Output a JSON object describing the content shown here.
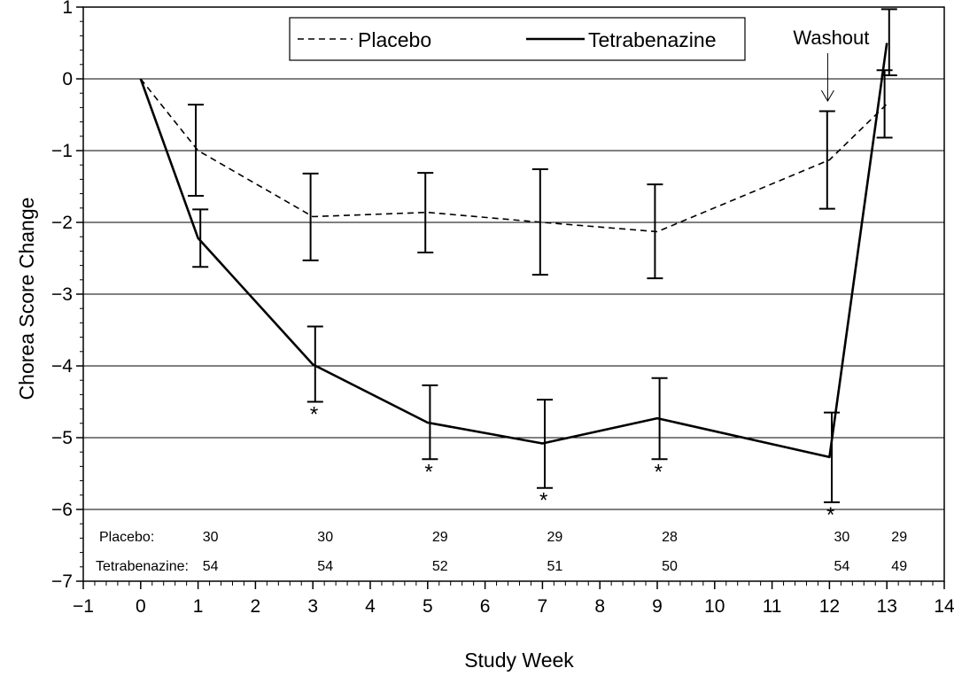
{
  "chart_data": {
    "type": "line",
    "title": "",
    "xlabel": "Study Week",
    "ylabel": "Chorea Score Change",
    "xlim": [
      -1,
      14
    ],
    "ylim": [
      -7,
      1
    ],
    "x_ticks": [
      -1,
      0,
      1,
      2,
      3,
      4,
      5,
      6,
      7,
      8,
      9,
      10,
      11,
      12,
      13,
      14
    ],
    "x_tick_labels": [
      "−1",
      "0",
      "1",
      "2",
      "3",
      "4",
      "5",
      "6",
      "7",
      "8",
      "9",
      "10",
      "11",
      "12",
      "13",
      "14"
    ],
    "y_ticks": [
      1,
      0,
      -1,
      -2,
      -3,
      -4,
      -5,
      -6,
      -7
    ],
    "y_tick_labels": [
      "1",
      "0",
      "−1",
      "−2",
      "−3",
      "−4",
      "−5",
      "−6",
      "−7"
    ],
    "grid": "horizontal",
    "legend_position": "top-center",
    "series": [
      {
        "name": "Placebo",
        "style": "dashed",
        "color": "#000000",
        "x": [
          0,
          1,
          3,
          5,
          7,
          9,
          12,
          13
        ],
        "y": [
          0,
          -1.0,
          -1.92,
          -1.86,
          -2.0,
          -2.13,
          -1.13,
          -0.35
        ],
        "err_low": [
          null,
          -1.63,
          -2.53,
          -2.42,
          -2.73,
          -2.78,
          -1.81,
          -0.82
        ],
        "err_high": [
          null,
          -0.36,
          -1.32,
          -1.31,
          -1.26,
          -1.47,
          -0.45,
          0.12
        ]
      },
      {
        "name": "Tetrabenazine",
        "style": "solid",
        "color": "#000000",
        "x": [
          0,
          1,
          3,
          5,
          7,
          9,
          12,
          13
        ],
        "y": [
          0,
          -2.22,
          -3.98,
          -4.79,
          -5.08,
          -4.73,
          -5.27,
          0.5
        ],
        "err_low": [
          null,
          -2.62,
          -4.5,
          -5.3,
          -5.7,
          -5.3,
          -5.9,
          0.05
        ],
        "err_high": [
          null,
          -1.82,
          -3.45,
          -4.27,
          -4.47,
          -4.17,
          -4.65,
          0.97
        ]
      }
    ],
    "significance_weeks": [
      3,
      5,
      7,
      9,
      12
    ],
    "significance_marker": "*",
    "annotation": {
      "text": "Washout",
      "week": 12
    },
    "counts": {
      "weeks": [
        1,
        3,
        5,
        7,
        9,
        12,
        13
      ],
      "rows": [
        {
          "label": "Placebo:",
          "values": [
            "30",
            "30",
            "29",
            "29",
            "28",
            "30",
            "29"
          ]
        },
        {
          "label": "Tetrabenazine:",
          "values": [
            "54",
            "54",
            "52",
            "51",
            "50",
            "54",
            "49"
          ]
        }
      ]
    }
  }
}
